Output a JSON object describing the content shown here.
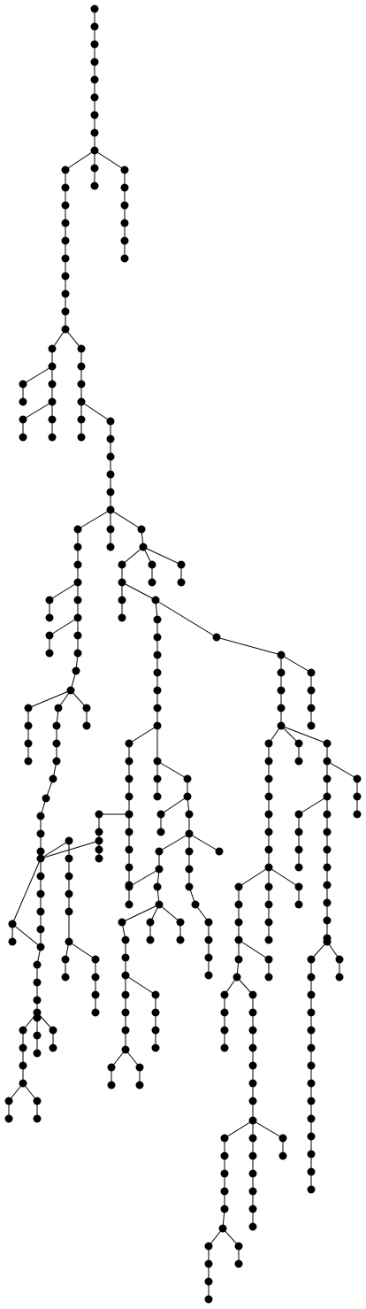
{
  "diagram": {
    "type": "tree",
    "node_color": "#000000",
    "edge_color": "#000000",
    "background": "#ffffff",
    "labels_shown": false
  }
}
